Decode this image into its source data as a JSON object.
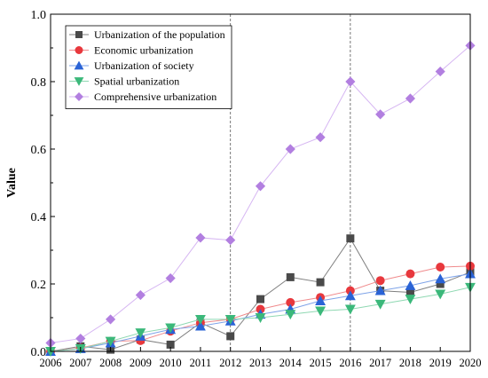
{
  "chart_data": {
    "type": "line",
    "title": "",
    "xlabel": "",
    "ylabel": "Value",
    "xlim": [
      2006,
      2020
    ],
    "ylim": [
      0,
      1.0
    ],
    "x": [
      2006,
      2007,
      2008,
      2009,
      2010,
      2011,
      2012,
      2013,
      2014,
      2015,
      2016,
      2017,
      2018,
      2019,
      2020
    ],
    "x_ticks": [
      "2006",
      "2007",
      "2008",
      "2009",
      "2010",
      "2011",
      "2012",
      "2013",
      "2014",
      "2015",
      "2016",
      "2017",
      "2018",
      "2019",
      "2020"
    ],
    "y_ticks": [
      {
        "value": 0.0,
        "label": "0.0"
      },
      {
        "value": 0.2,
        "label": "0.2"
      },
      {
        "value": 0.4,
        "label": "0.4"
      },
      {
        "value": 0.6,
        "label": "0.6"
      },
      {
        "value": 0.8,
        "label": "0.8"
      },
      {
        "value": 1.0,
        "label": "1.0"
      }
    ],
    "grid": false,
    "legend_position": "top-left",
    "reference_lines_x": [
      2012,
      2016
    ],
    "series": [
      {
        "name": "Urbanization of the population",
        "marker": "square",
        "color": "#4a4a4a",
        "line_color": "#7f7f7f",
        "values": [
          0.0,
          0.015,
          0.005,
          0.035,
          0.02,
          0.085,
          0.045,
          0.155,
          0.22,
          0.205,
          0.335,
          0.18,
          0.175,
          0.2,
          0.235
        ]
      },
      {
        "name": "Economic urbanization",
        "marker": "circle",
        "color": "#e8383d",
        "line_color": "#f08a8c",
        "values": [
          0.0,
          0.01,
          0.03,
          0.032,
          0.06,
          0.085,
          0.095,
          0.125,
          0.145,
          0.16,
          0.18,
          0.21,
          0.23,
          0.25,
          0.253
        ]
      },
      {
        "name": "Urbanization of society",
        "marker": "triangle-up",
        "color": "#2a63d6",
        "line_color": "#7ea3e8",
        "values": [
          0.0,
          0.008,
          0.025,
          0.045,
          0.065,
          0.075,
          0.09,
          0.11,
          0.125,
          0.15,
          0.165,
          0.18,
          0.195,
          0.215,
          0.23
        ]
      },
      {
        "name": "Spatial urbanization",
        "marker": "triangle-down",
        "color": "#3bb87a",
        "line_color": "#8fd8b2",
        "values": [
          0.0,
          0.008,
          0.03,
          0.055,
          0.07,
          0.095,
          0.095,
          0.1,
          0.11,
          0.12,
          0.125,
          0.14,
          0.155,
          0.17,
          0.19
        ]
      },
      {
        "name": "Comprehensive urbanization",
        "marker": "diamond",
        "color": "#b27fe0",
        "line_color": "#d6b6f2",
        "values": [
          0.025,
          0.038,
          0.095,
          0.167,
          0.217,
          0.337,
          0.33,
          0.49,
          0.6,
          0.635,
          0.8,
          0.703,
          0.75,
          0.83,
          0.907
        ]
      }
    ]
  }
}
